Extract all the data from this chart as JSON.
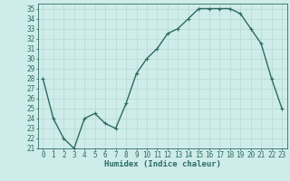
{
  "x": [
    0,
    1,
    2,
    3,
    4,
    5,
    6,
    7,
    8,
    9,
    10,
    11,
    12,
    13,
    14,
    15,
    16,
    17,
    18,
    19,
    20,
    21,
    22,
    23
  ],
  "y": [
    28,
    24,
    22,
    21,
    24,
    24.5,
    23.5,
    23,
    25.5,
    28.5,
    30,
    31,
    32.5,
    33,
    34,
    35,
    35,
    35,
    35,
    34.5,
    33,
    31.5,
    28,
    25
  ],
  "xlabel": "Humidex (Indice chaleur)",
  "ylabel": "",
  "xlim": [
    -0.5,
    23.5
  ],
  "ylim": [
    21,
    35.5
  ],
  "yticks": [
    21,
    22,
    23,
    24,
    25,
    26,
    27,
    28,
    29,
    30,
    31,
    32,
    33,
    34,
    35
  ],
  "xticks": [
    0,
    1,
    2,
    3,
    4,
    5,
    6,
    7,
    8,
    9,
    10,
    11,
    12,
    13,
    14,
    15,
    16,
    17,
    18,
    19,
    20,
    21,
    22,
    23
  ],
  "line_color": "#2e6b60",
  "marker": "+",
  "bg_color": "#ceecea",
  "grid_color": "#b8d8d4",
  "axes_color": "#2e6b60",
  "label_color": "#2e6b60",
  "tick_color": "#2e6b60",
  "font_family": "monospace",
  "xlabel_fontsize": 6.5,
  "tick_fontsize": 5.5,
  "linewidth": 1.0,
  "markersize": 3.5,
  "markeredgewidth": 0.8
}
